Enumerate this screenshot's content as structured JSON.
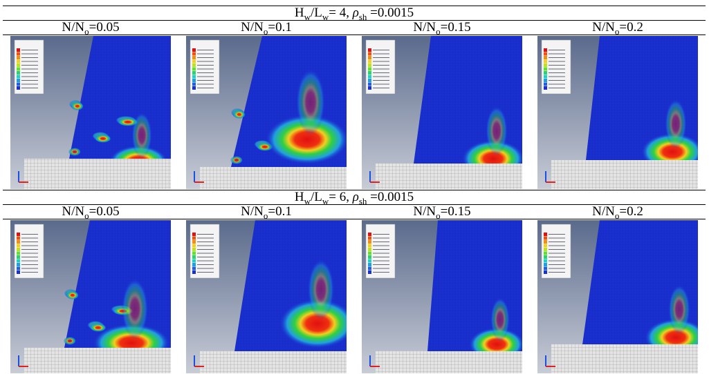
{
  "sections": [
    {
      "title": [
        {
          "text": "H"
        },
        {
          "text": "w",
          "sub": true
        },
        {
          "text": "/L"
        },
        {
          "text": "w",
          "sub": true
        },
        {
          "text": "= 4, "
        },
        {
          "text": "ρ",
          "italic": true
        },
        {
          "text": "sh",
          "sub": true
        },
        {
          "text": " =0.0015"
        }
      ],
      "columns": [
        [
          {
            "text": "N/N"
          },
          {
            "text": "o",
            "sub": true
          },
          {
            "text": "=0.05"
          }
        ],
        [
          {
            "text": "N/N"
          },
          {
            "text": "o",
            "sub": true
          },
          {
            "text": "=0.1"
          }
        ],
        [
          {
            "text": "N/N"
          },
          {
            "text": "o",
            "sub": true
          },
          {
            "text": "=0.15"
          }
        ],
        [
          {
            "text": "N/N"
          },
          {
            "text": "o",
            "sub": true
          },
          {
            "text": "=0.2"
          }
        ]
      ]
    },
    {
      "title": [
        {
          "text": "H"
        },
        {
          "text": "w",
          "sub": true
        },
        {
          "text": "/L"
        },
        {
          "text": "w",
          "sub": true
        },
        {
          "text": "= 6, "
        },
        {
          "text": "ρ",
          "italic": true
        },
        {
          "text": "sh",
          "sub": true
        },
        {
          "text": " =0.0015"
        }
      ],
      "columns": [
        [
          {
            "text": "N/N"
          },
          {
            "text": "o",
            "sub": true
          },
          {
            "text": "=0.05"
          }
        ],
        [
          {
            "text": "N/N"
          },
          {
            "text": "o",
            "sub": true
          },
          {
            "text": "=0.1"
          }
        ],
        [
          {
            "text": "N/N"
          },
          {
            "text": "o",
            "sub": true
          },
          {
            "text": "=0.15"
          }
        ],
        [
          {
            "text": "N/N"
          },
          {
            "text": "o",
            "sub": true
          },
          {
            "text": "=0.2"
          }
        ]
      ]
    }
  ]
}
